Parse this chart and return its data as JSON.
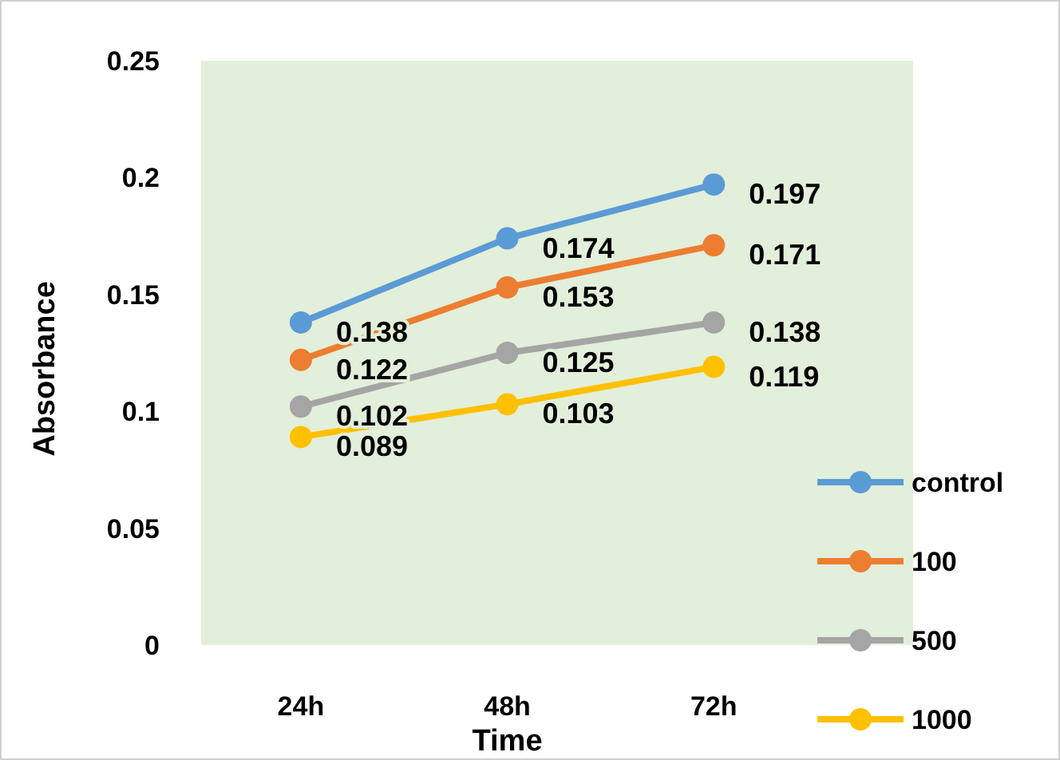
{
  "chart_data": {
    "type": "line",
    "xlabel": "Time",
    "ylabel": "Absorbance",
    "categories": [
      "24h",
      "48h",
      "72h"
    ],
    "series": [
      {
        "name": "control",
        "color": "#5b9bd5",
        "values": [
          0.138,
          0.174,
          0.197
        ]
      },
      {
        "name": "100",
        "color": "#ed7d31",
        "values": [
          0.122,
          0.153,
          0.171
        ]
      },
      {
        "name": "500",
        "color": "#a5a5a5",
        "values": [
          0.102,
          0.125,
          0.138
        ]
      },
      {
        "name": "1000",
        "color": "#ffc000",
        "values": [
          0.089,
          0.103,
          0.119
        ]
      }
    ],
    "ylim": [
      0,
      0.25
    ],
    "yticks": [
      0,
      0.05,
      {
        "value": 0.1,
        "label": "0.1"
      },
      0.15,
      {
        "value": 0.2,
        "label": "0.2"
      },
      0.25
    ],
    "grid": false,
    "legend": "bottom right",
    "marker": "circle",
    "line_style": "solid",
    "data_labels": true
  }
}
